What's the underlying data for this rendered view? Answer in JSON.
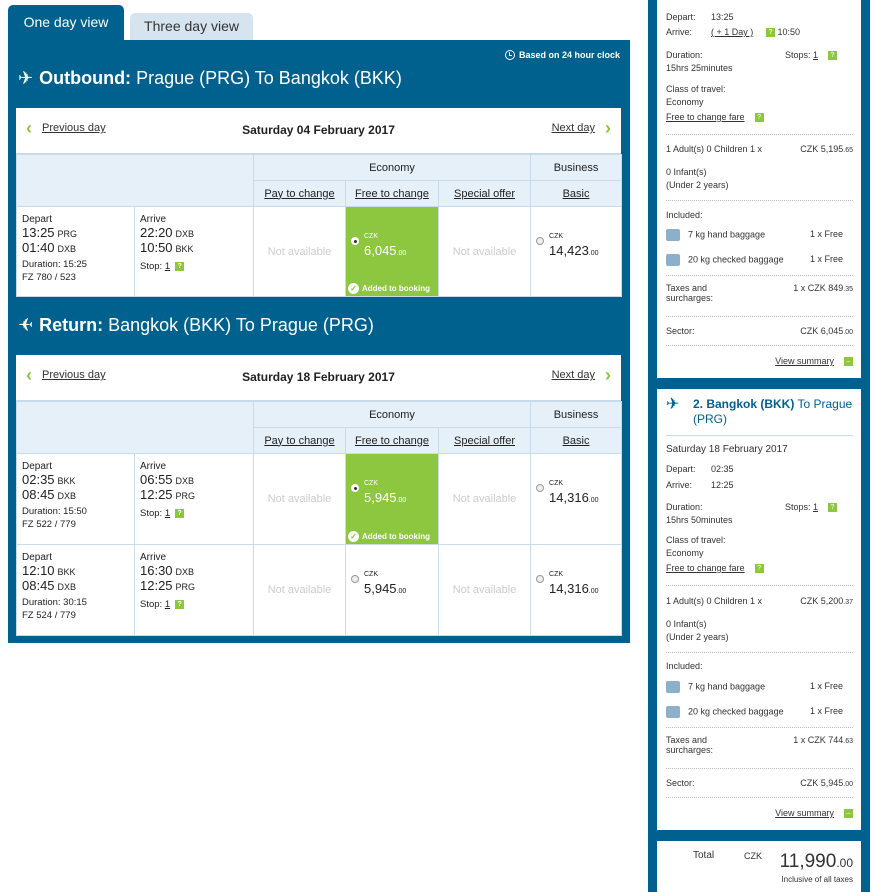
{
  "tabs": {
    "active": "One day view",
    "inactive": "Three day view"
  },
  "clock_note": "Based on 24 hour clock",
  "outbound": {
    "prefix": "Outbound:",
    "route": "Prague (PRG) To Bangkok (BKK)",
    "prev": "Previous day",
    "next": "Next day",
    "date": "Saturday 04 February 2017",
    "flights": [
      {
        "depart_label": "Depart",
        "arrive_label": "Arrive",
        "d1_time": "13:25",
        "d1_ap": "PRG",
        "d2_time": "01:40",
        "d2_ap": "DXB",
        "a1_time": "22:20",
        "a1_ap": "DXB",
        "a2_time": "10:50",
        "a2_ap": "BKK",
        "duration": "Duration: 15:25",
        "flight_no": "FZ 780 / 523",
        "stop_label": "Stop:",
        "stops": "1",
        "pay": "Not available",
        "free_cur": "CZK",
        "free_amt": "6,045",
        "free_dec": ".00",
        "added": "Added to booking",
        "special": "Not available",
        "biz_cur": "CZK",
        "biz_amt": "14,423",
        "biz_dec": ".00"
      }
    ]
  },
  "return": {
    "prefix": "Return:",
    "route": "Bangkok (BKK) To Prague (PRG)",
    "prev": "Previous day",
    "next": "Next day",
    "date": "Saturday 18 February 2017",
    "flights": [
      {
        "depart_label": "Depart",
        "arrive_label": "Arrive",
        "d1_time": "02:35",
        "d1_ap": "BKK",
        "d2_time": "08:45",
        "d2_ap": "DXB",
        "a1_time": "06:55",
        "a1_ap": "DXB",
        "a2_time": "12:25",
        "a2_ap": "PRG",
        "duration": "Duration: 15:50",
        "flight_no": "FZ 522 / 779",
        "stop_label": "Stop:",
        "stops": "1",
        "pay": "Not available",
        "free_cur": "CZK",
        "free_amt": "5,945",
        "free_dec": ".00",
        "added": "Added to booking",
        "special": "Not available",
        "biz_cur": "CZK",
        "biz_amt": "14,316",
        "biz_dec": ".00"
      },
      {
        "depart_label": "Depart",
        "arrive_label": "Arrive",
        "d1_time": "12:10",
        "d1_ap": "BKK",
        "d2_time": "08:45",
        "d2_ap": "DXB",
        "a1_time": "16:30",
        "a1_ap": "DXB",
        "a2_time": "12:25",
        "a2_ap": "PRG",
        "duration": "Duration: 30:15",
        "flight_no": "FZ 524 / 779",
        "stop_label": "Stop:",
        "stops": "1",
        "pay": "Not available",
        "free_cur": "CZK",
        "free_amt": "5,945",
        "free_dec": ".00",
        "special": "Not available",
        "biz_cur": "CZK",
        "biz_amt": "14,316",
        "biz_dec": ".00"
      }
    ]
  },
  "headers": {
    "economy": "Economy",
    "business": "Business",
    "pay": "Pay to change",
    "free": "Free to change",
    "special": "Special offer",
    "basic": "Basic"
  },
  "sidebar": {
    "s1": {
      "depart_label": "Depart:",
      "depart": "13:25",
      "arrive_label": "Arrive:",
      "plus_day": "( + 1 Day )",
      "arrive": "10:50",
      "duration_label": "Duration:",
      "duration": "15hrs 25minutes",
      "stops_label": "Stops:",
      "stops": "1",
      "class_label": "Class of travel:",
      "class": "Economy",
      "fare": "Free to change fare",
      "pax": "1 Adult(s)  0 Children  1 x",
      "pax_price": "CZK 5,195",
      "pax_dec": ".65",
      "infants": "0 Infant(s)",
      "infants_note": "(Under 2 years)",
      "included": "Included:",
      "bag1": "7 kg hand baggage",
      "bag1_q": "1 x Free",
      "bag2": "20 kg checked baggage",
      "bag2_q": "1 x Free",
      "taxes_label": "Taxes and surcharges:",
      "taxes": "1 x CZK 849",
      "taxes_dec": ".35",
      "sector_label": "Sector:",
      "sector": "CZK 6,045",
      "sector_dec": ".00",
      "view": "View summary"
    },
    "s2": {
      "title_prefix": "2. Bangkok (BKK)",
      "title_rest": "To Prague (PRG)",
      "date": "Saturday 18 February 2017",
      "depart_label": "Depart:",
      "depart": "02:35",
      "arrive_label": "Arrive:",
      "arrive": "12:25",
      "duration_label": "Duration:",
      "duration": "15hrs 50minutes",
      "stops_label": "Stops:",
      "stops": "1",
      "class_label": "Class of travel:",
      "class": "Economy",
      "fare": "Free to change fare",
      "pax": "1 Adult(s)  0 Children  1 x",
      "pax_price": "CZK 5,200",
      "pax_dec": ".37",
      "infants": "0 Infant(s)",
      "infants_note": "(Under 2 years)",
      "included": "Included:",
      "bag1": "7 kg hand baggage",
      "bag1_q": "1 x Free",
      "bag2": "20 kg checked baggage",
      "bag2_q": "1 x Free",
      "taxes_label": "Taxes and surcharges:",
      "taxes": "1 x CZK 744",
      "taxes_dec": ".63",
      "sector_label": "Sector:",
      "sector": "CZK 5,945",
      "sector_dec": ".00",
      "view": "View summary"
    },
    "total": {
      "label": "Total",
      "cur": "CZK",
      "amount": "11,990",
      "dec": ".00",
      "note": "Inclusive of all taxes"
    }
  }
}
